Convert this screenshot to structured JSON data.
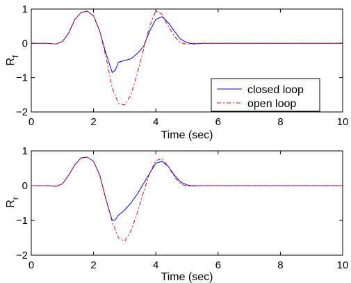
{
  "chart_data": [
    {
      "type": "line",
      "xlabel": "Time (sec)",
      "ylabel": "R",
      "ylabel_sub": "f",
      "xlim": [
        0,
        10
      ],
      "ylim": [
        -2,
        1
      ],
      "xticks": [
        "0",
        "2",
        "4",
        "6",
        "8",
        "10"
      ],
      "yticks": [
        "1",
        "0",
        "−1",
        "−2"
      ],
      "grid": false,
      "legend": {
        "position": "bottom-right",
        "entries": [
          "closed loop",
          "open loop"
        ]
      },
      "series": [
        {
          "name": "closed loop",
          "color": "#0000ff",
          "style": "solid",
          "x": [
            0,
            0.5,
            0.8,
            1.0,
            1.2,
            1.4,
            1.6,
            1.8,
            2.0,
            2.2,
            2.4,
            2.6,
            2.7,
            2.8,
            3.0,
            3.2,
            3.4,
            3.6,
            3.8,
            4.0,
            4.2,
            4.4,
            4.6,
            4.8,
            5.0,
            5.2,
            5.5,
            6.0,
            7.0,
            8.0,
            9.0,
            10.0
          ],
          "y": [
            0,
            0,
            -0.02,
            0.05,
            0.3,
            0.7,
            0.9,
            0.94,
            0.8,
            0.35,
            -0.3,
            -0.85,
            -0.78,
            -0.55,
            -0.5,
            -0.45,
            -0.3,
            -0.1,
            0.35,
            0.7,
            0.78,
            0.6,
            0.35,
            0.12,
            0.02,
            -0.02,
            0,
            0,
            0,
            0,
            0,
            0
          ]
        },
        {
          "name": "open loop",
          "color": "#ff0000",
          "style": "dashdot",
          "x": [
            0,
            0.5,
            0.8,
            1.0,
            1.2,
            1.4,
            1.6,
            1.8,
            2.0,
            2.2,
            2.4,
            2.6,
            2.8,
            3.0,
            3.2,
            3.4,
            3.6,
            3.8,
            4.0,
            4.2,
            4.4,
            4.6,
            4.8,
            5.0,
            5.2,
            5.5,
            6.0,
            7.0,
            8.0,
            9.0,
            10.0
          ],
          "y": [
            0,
            0,
            -0.02,
            0.05,
            0.3,
            0.7,
            0.9,
            0.94,
            0.8,
            0.35,
            -0.4,
            -1.3,
            -1.75,
            -1.8,
            -1.5,
            -0.9,
            -0.2,
            0.5,
            0.95,
            0.85,
            0.5,
            0.2,
            0.02,
            -0.03,
            0,
            0,
            0,
            0,
            0,
            0,
            0
          ]
        }
      ]
    },
    {
      "type": "line",
      "xlabel": "Time (sec)",
      "ylabel": "R",
      "ylabel_sub": "r",
      "xlim": [
        0,
        10
      ],
      "ylim": [
        -2,
        1
      ],
      "xticks": [
        "0",
        "2",
        "4",
        "6",
        "8",
        "10"
      ],
      "yticks": [
        "1",
        "0",
        "−1",
        "−2"
      ],
      "grid": false,
      "series": [
        {
          "name": "closed loop",
          "color": "#0000ff",
          "style": "solid",
          "x": [
            0,
            0.5,
            0.8,
            1.0,
            1.2,
            1.4,
            1.6,
            1.8,
            2.0,
            2.2,
            2.4,
            2.6,
            2.7,
            2.8,
            3.0,
            3.2,
            3.4,
            3.6,
            3.8,
            4.0,
            4.2,
            4.4,
            4.6,
            4.8,
            5.0,
            5.2,
            5.5,
            6.0,
            7.0,
            8.0,
            9.0,
            10.0
          ],
          "y": [
            0,
            0,
            -0.02,
            0.05,
            0.3,
            0.6,
            0.8,
            0.82,
            0.7,
            0.3,
            -0.4,
            -1.0,
            -0.98,
            -0.85,
            -0.7,
            -0.5,
            -0.25,
            0.05,
            0.35,
            0.65,
            0.7,
            0.55,
            0.3,
            0.1,
            0.02,
            -0.01,
            0,
            0,
            0,
            0,
            0,
            0
          ]
        },
        {
          "name": "open loop",
          "color": "#ff0000",
          "style": "dashdot",
          "x": [
            0,
            0.5,
            0.8,
            1.0,
            1.2,
            1.4,
            1.6,
            1.8,
            2.0,
            2.2,
            2.4,
            2.6,
            2.8,
            3.0,
            3.2,
            3.4,
            3.6,
            3.8,
            4.0,
            4.2,
            4.4,
            4.6,
            4.8,
            5.0,
            5.2,
            5.5,
            6.0,
            7.0,
            8.0,
            9.0,
            10.0
          ],
          "y": [
            0,
            0,
            -0.02,
            0.05,
            0.3,
            0.6,
            0.8,
            0.82,
            0.7,
            0.3,
            -0.4,
            -1.05,
            -1.5,
            -1.6,
            -1.3,
            -0.8,
            -0.2,
            0.35,
            0.72,
            0.78,
            0.55,
            0.25,
            0.05,
            -0.02,
            0,
            0,
            0,
            0,
            0,
            0,
            0
          ]
        }
      ]
    }
  ]
}
